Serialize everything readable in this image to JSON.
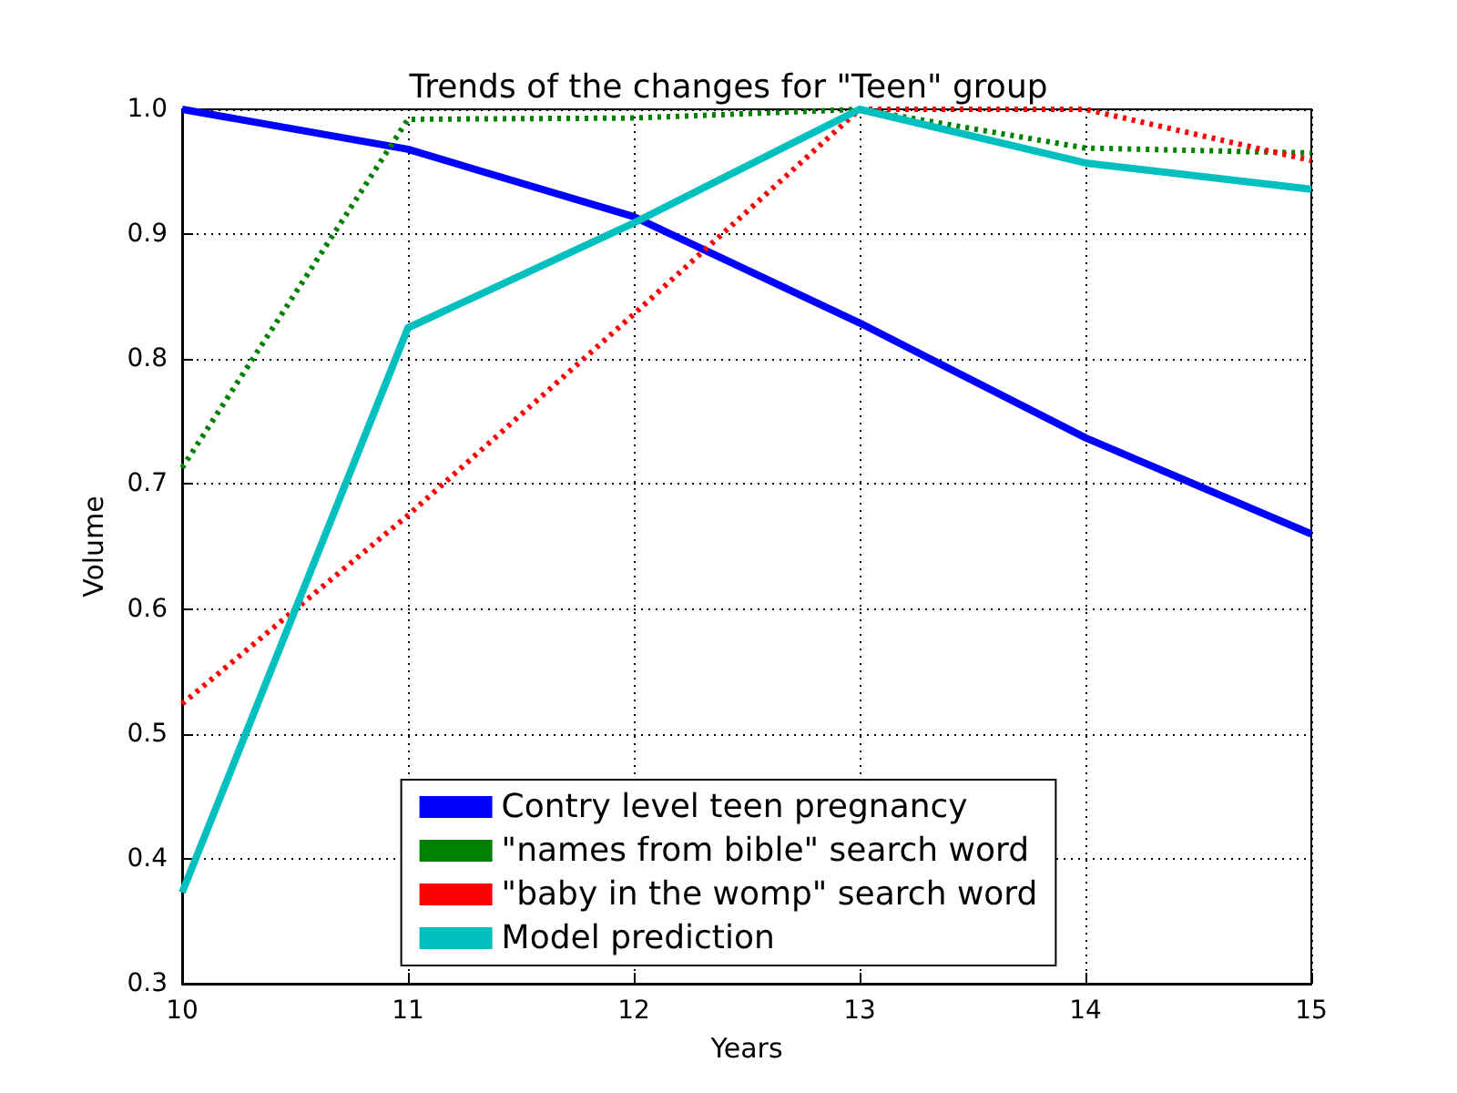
{
  "chart_data": {
    "type": "line",
    "title": "Trends of the changes for \"Teen\" group",
    "xlabel": "Years",
    "ylabel": "Volume",
    "x": [
      10,
      11,
      12,
      13,
      14,
      15
    ],
    "series": [
      {
        "name": "Contry level teen pregnancy",
        "color": "#0000ff",
        "line_style": "solid",
        "values": [
          1.0,
          0.968,
          0.914,
          0.829,
          0.737,
          0.66
        ]
      },
      {
        "name": "\"names from bible\" search word",
        "color": "#008000",
        "line_style": "dotted",
        "values": [
          0.713,
          0.992,
          0.993,
          1.0,
          0.969,
          0.965
        ]
      },
      {
        "name": "\"baby in the womp\" search word",
        "color": "#ff0000",
        "line_style": "dotted",
        "values": [
          0.524,
          0.675,
          0.836,
          1.0,
          1.0,
          0.959
        ]
      },
      {
        "name": "Model prediction",
        "color": "#00bfbf",
        "line_style": "solid",
        "values": [
          0.373,
          0.825,
          0.909,
          1.0,
          0.957,
          0.936
        ]
      }
    ],
    "xlim": [
      10,
      15
    ],
    "ylim": [
      0.3,
      1.0
    ],
    "xticks": [
      10,
      11,
      12,
      13,
      14,
      15
    ],
    "yticks": [
      {
        "value": 0.3,
        "label": "0.3"
      },
      {
        "value": 0.4,
        "label": "0.4"
      },
      {
        "value": 0.5,
        "label": "0.5"
      },
      {
        "value": 0.6,
        "label": "0.6"
      },
      {
        "value": 0.7,
        "label": "0.7"
      },
      {
        "value": 0.8,
        "label": "0.8"
      },
      {
        "value": 0.9,
        "label": "0.9"
      },
      {
        "value": 1.0,
        "label": "1.0"
      }
    ],
    "grid": true,
    "legend": "bottom",
    "marker": "none"
  }
}
